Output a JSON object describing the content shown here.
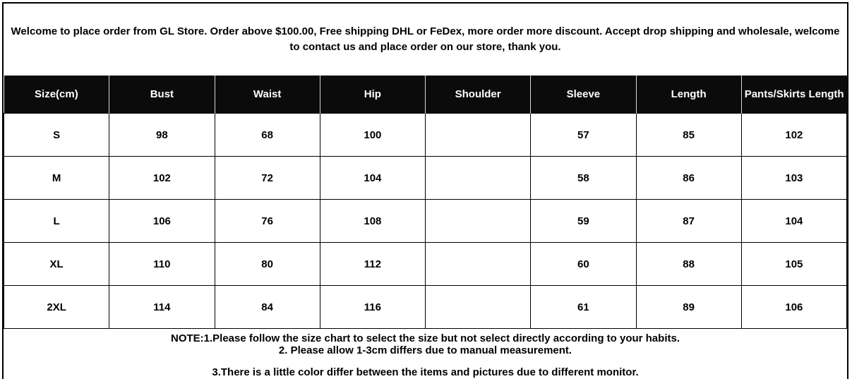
{
  "banner": {
    "text": "Welcome to place order from GL Store. Order above $100.00, Free shipping DHL or FeDex, more order more discount. Accept drop shipping and wholesale, welcome to contact us and place order on our store, thank you."
  },
  "size_chart": {
    "columns": [
      "Size(cm)",
      "Bust",
      "Waist",
      "Hip",
      "Shoulder",
      "Sleeve",
      "Length",
      "Pants/Skirts Length"
    ],
    "rows": [
      [
        "S",
        "98",
        "68",
        "100",
        "",
        "57",
        "85",
        "102"
      ],
      [
        "M",
        "102",
        "72",
        "104",
        "",
        "58",
        "86",
        "103"
      ],
      [
        "L",
        "106",
        "76",
        "108",
        "",
        "59",
        "87",
        "104"
      ],
      [
        "XL",
        "110",
        "80",
        "112",
        "",
        "60",
        "88",
        "105"
      ],
      [
        "2XL",
        "114",
        "84",
        "116",
        "",
        "61",
        "89",
        "106"
      ]
    ]
  },
  "notes": {
    "line1": "NOTE:1.Please follow the size chart to select the size but not select directly according to your habits.",
    "line2": "2. Please allow 1-3cm differs due to manual measurement.",
    "line3": "3.There is a little color differ between the items and pictures due to different monitor."
  },
  "colors": {
    "header_bg": "#0b0b0b",
    "header_text": "#ffffff",
    "border": "#000000",
    "background": "#ffffff"
  }
}
